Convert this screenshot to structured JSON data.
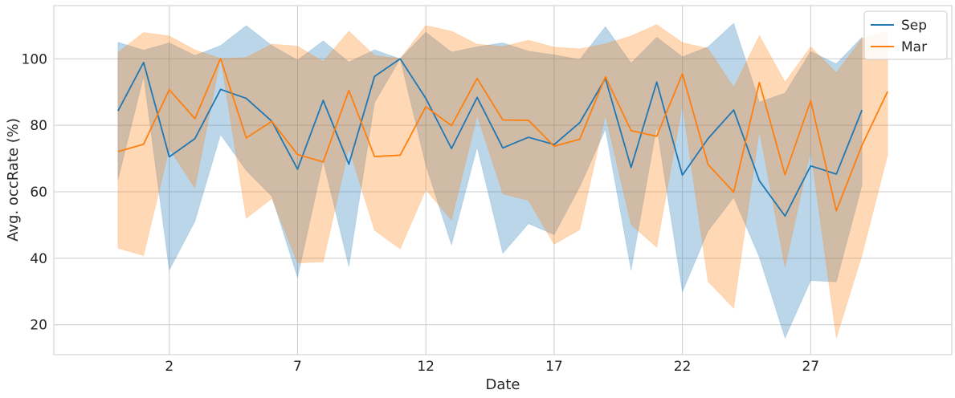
{
  "chart_data": {
    "type": "line",
    "title": "",
    "xlabel": "Date",
    "ylabel": "Avg. occRate (%)",
    "xlim": [
      -2.5,
      32.5
    ],
    "ylim": [
      11,
      116
    ],
    "xticks": [
      2,
      7,
      12,
      17,
      22,
      27
    ],
    "yticks": [
      20,
      40,
      60,
      80,
      100
    ],
    "grid": true,
    "legend_position": "top-right",
    "series": [
      {
        "name": "Sep",
        "color": "#1f77b4",
        "x": [
          0,
          1,
          2,
          3,
          4,
          5,
          6,
          7,
          8,
          9,
          10,
          11,
          12,
          13,
          14,
          15,
          16,
          17,
          18,
          19,
          20,
          21,
          22,
          23,
          24,
          25,
          26,
          27,
          28,
          29
        ],
        "mean": [
          84.3,
          98.9,
          70.5,
          76.0,
          90.8,
          88.1,
          81.2,
          66.8,
          87.5,
          68.3,
          94.7,
          100.0,
          88.1,
          73.0,
          88.4,
          73.2,
          76.4,
          74.2,
          80.8,
          94.1,
          67.3,
          93.0,
          65.0,
          76.0,
          84.6,
          63.3,
          52.7,
          67.8,
          65.3,
          84.6
        ],
        "upper": [
          105.0,
          102.6,
          104.8,
          101.0,
          104.0,
          110.0,
          104.0,
          99.6,
          105.4,
          99.0,
          102.7,
          100.0,
          108.0,
          102.0,
          103.6,
          104.8,
          102.3,
          101.2,
          99.8,
          109.7,
          98.7,
          106.5,
          100.6,
          103.6,
          110.7,
          87.0,
          89.7,
          102.2,
          98.5,
          106.5
        ],
        "lower": [
          63.6,
          94.7,
          36.4,
          51.1,
          77.2,
          66.4,
          58.6,
          34.2,
          69.3,
          37.5,
          86.8,
          100.0,
          68.0,
          44.0,
          73.4,
          41.5,
          50.4,
          47.1,
          61.5,
          78.8,
          36.4,
          79.6,
          29.9,
          48.2,
          58.3,
          40.3,
          16.0,
          33.3,
          32.9,
          62.0
        ]
      },
      {
        "name": "Mar",
        "color": "#ff7f0e",
        "x": [
          0,
          1,
          2,
          3,
          4,
          5,
          6,
          7,
          8,
          9,
          10,
          11,
          12,
          13,
          14,
          15,
          16,
          17,
          18,
          19,
          20,
          21,
          22,
          23,
          24,
          25,
          26,
          27,
          28,
          29,
          30
        ],
        "mean": [
          72.1,
          74.3,
          90.7,
          82.0,
          100.1,
          76.2,
          81.2,
          71.2,
          69.0,
          90.5,
          70.6,
          71.0,
          85.6,
          79.9,
          94.1,
          81.6,
          81.5,
          73.7,
          75.8,
          94.6,
          78.4,
          76.7,
          95.5,
          68.2,
          59.9,
          92.9,
          65.1,
          87.4,
          54.3,
          74.0,
          90.2
        ],
        "upper": [
          101.9,
          107.9,
          106.9,
          102.7,
          100.1,
          100.4,
          104.4,
          103.8,
          99.2,
          108.3,
          101.0,
          100.1,
          110.0,
          108.3,
          104.4,
          103.7,
          105.6,
          103.5,
          103.0,
          104.5,
          106.9,
          110.3,
          104.9,
          103.1,
          91.4,
          107.0,
          93.0,
          103.6,
          95.8,
          106.1,
          108.3
        ],
        "lower": [
          43.0,
          40.8,
          73.0,
          61.1,
          100.1,
          52.0,
          58.0,
          38.6,
          38.9,
          73.1,
          48.4,
          42.8,
          60.6,
          51.5,
          83.0,
          59.4,
          57.4,
          44.2,
          48.6,
          83.0,
          50.1,
          43.3,
          86.1,
          33.0,
          25.0,
          78.3,
          37.4,
          72.3,
          16.0,
          40.9,
          71.1
        ]
      }
    ]
  }
}
